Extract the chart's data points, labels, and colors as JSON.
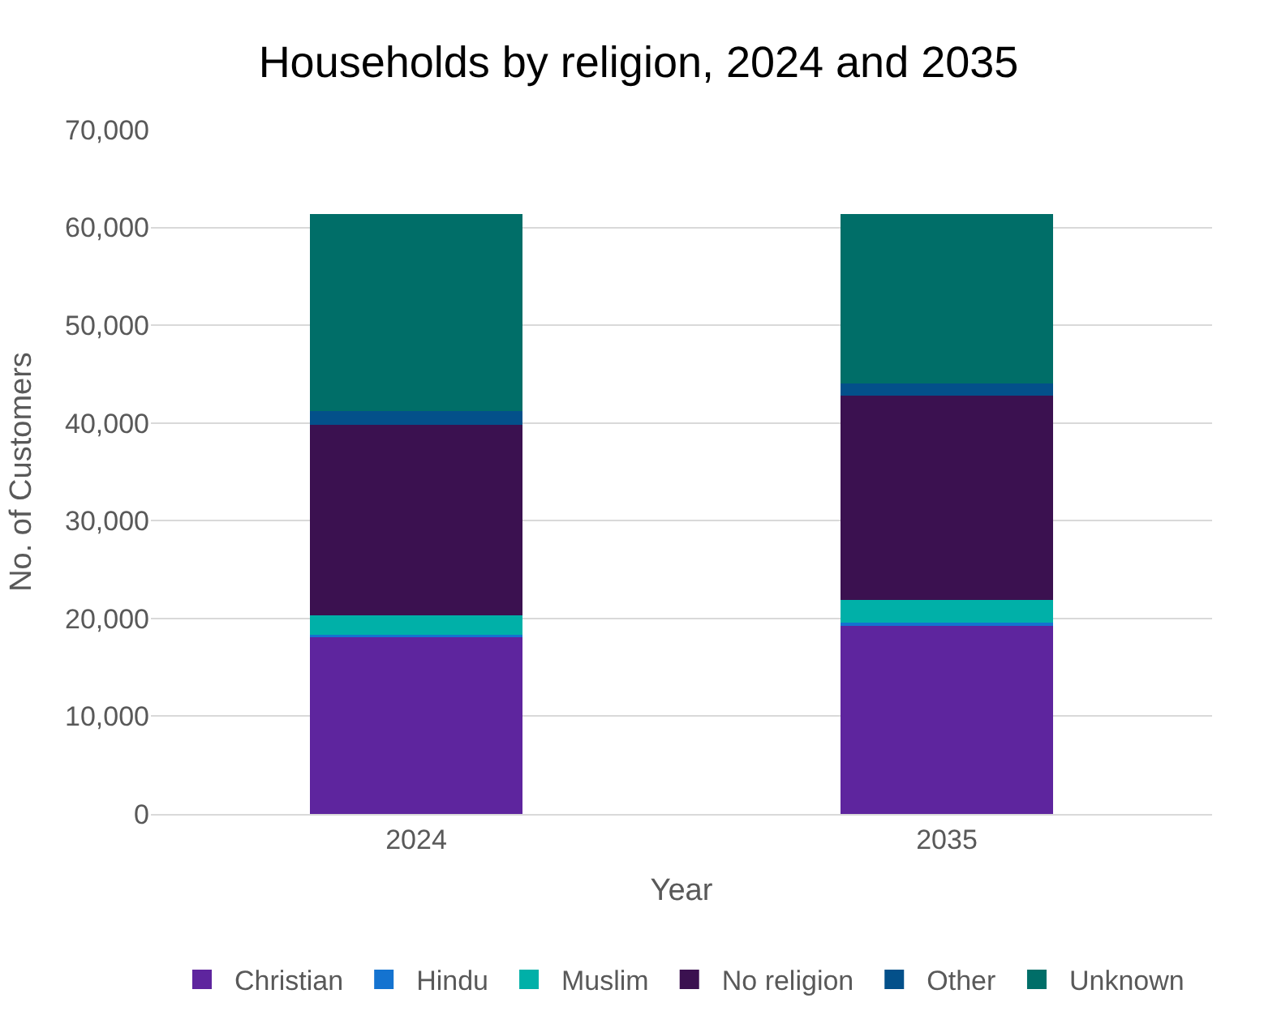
{
  "chart_data": {
    "type": "bar",
    "title": "Households by religion, 2024 and 2035",
    "xlabel": "Year",
    "ylabel": "No. of Customers",
    "categories": [
      "2024",
      "2035"
    ],
    "stacked": true,
    "grid": "y",
    "legend": "bottom",
    "ylim": [
      0,
      70000
    ],
    "yticks": [
      {
        "value": 0,
        "label": "0"
      },
      {
        "value": 10000,
        "label": "10,000"
      },
      {
        "value": 20000,
        "label": "20,000"
      },
      {
        "value": 30000,
        "label": "30,000"
      },
      {
        "value": 40000,
        "label": "40,000"
      },
      {
        "value": 50000,
        "label": "50,000"
      },
      {
        "value": 60000,
        "label": "60,000"
      },
      {
        "value": 70000,
        "label": "70,000"
      }
    ],
    "series": [
      {
        "name": "Christian",
        "color": "#5e259e",
        "values": [
          18200,
          19300
        ]
      },
      {
        "name": "Hindu",
        "color": "#1473d0",
        "values": [
          100,
          300
        ]
      },
      {
        "name": "Muslim",
        "color": "#00b0a8",
        "values": [
          2000,
          2300
        ]
      },
      {
        "name": "No religion",
        "color": "#3b1150",
        "values": [
          19500,
          20900
        ]
      },
      {
        "name": "Other",
        "color": "#03508a",
        "values": [
          1400,
          1200
        ]
      },
      {
        "name": "Unknown",
        "color": "#006e68",
        "values": [
          20200,
          17400
        ]
      }
    ]
  }
}
